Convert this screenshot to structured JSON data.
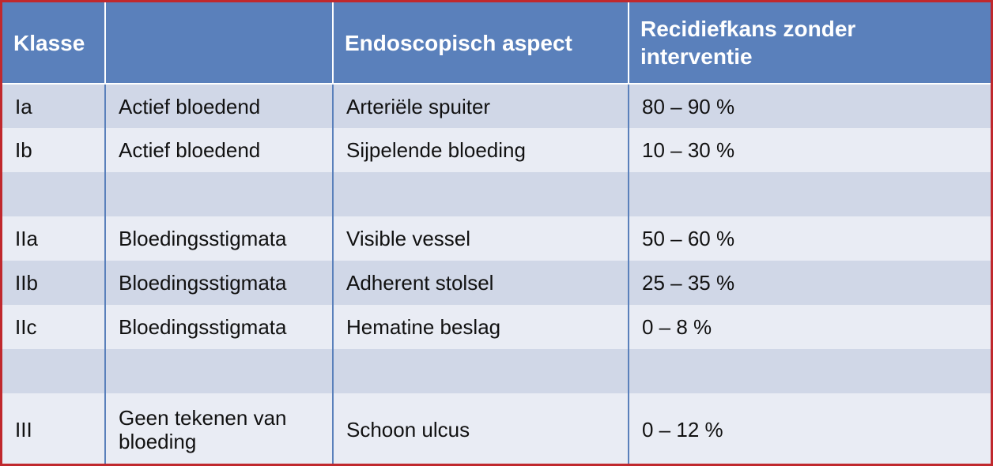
{
  "table": {
    "headers": [
      "Klasse",
      "",
      "Endoscopisch aspect",
      "Recidiefkans zonder interventie"
    ],
    "rows": [
      [
        "Ia",
        "Actief bloedend",
        "Arteriële spuiter",
        "80 – 90 %"
      ],
      [
        "Ib",
        "Actief bloedend",
        "Sijpelende bloeding",
        "10 – 30 %"
      ],
      [
        "",
        "",
        "",
        ""
      ],
      [
        "IIa",
        "Bloedingsstigmata",
        "Visible vessel",
        "50 – 60 %"
      ],
      [
        "IIb",
        "Bloedingsstigmata",
        "Adherent stolsel",
        "25 – 35 %"
      ],
      [
        "IIc",
        "Bloedingsstigmata",
        "Hematine beslag",
        "0 – 8 %"
      ],
      [
        "",
        "",
        "",
        ""
      ],
      [
        "III",
        "Geen tekenen van bloeding",
        "Schoon ulcus",
        "0 – 12 %"
      ]
    ]
  },
  "colors": {
    "header": "#5a80bb",
    "row_dark": "#d0d7e7",
    "row_light": "#e9ecf4",
    "frame": "#c0282d"
  }
}
